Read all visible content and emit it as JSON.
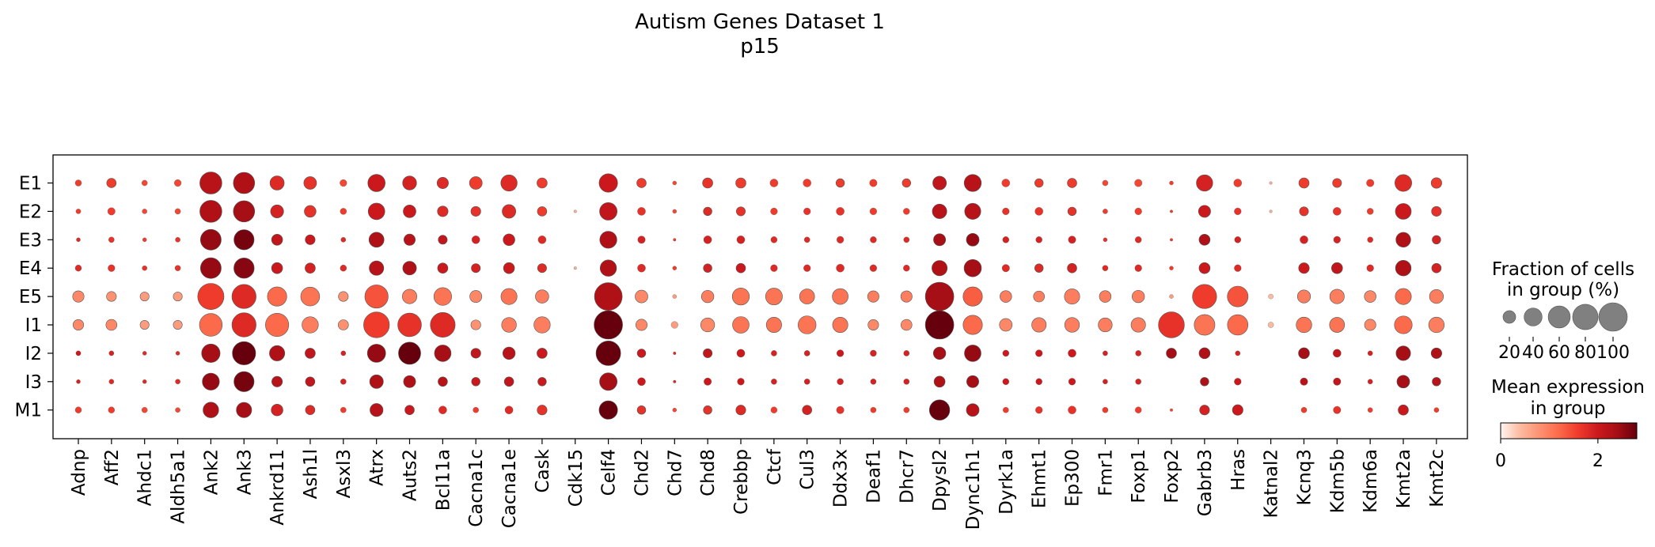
{
  "chart_data": {
    "type": "dotplot",
    "title": "Autism Genes Dataset 1",
    "subtitle": "p15",
    "groups": [
      "E1",
      "E2",
      "E3",
      "E4",
      "E5",
      "I1",
      "I2",
      "I3",
      "M1"
    ],
    "genes": [
      "Adnp",
      "Aff2",
      "Ahdc1",
      "Aldh5a1",
      "Ank2",
      "Ank3",
      "Ankrd11",
      "Ash1l",
      "Asxl3",
      "Atrx",
      "Auts2",
      "Bcl11a",
      "Cacna1c",
      "Cacna1e",
      "Cask",
      "Cdk15",
      "Celf4",
      "Chd2",
      "Chd7",
      "Chd8",
      "Crebbp",
      "Ctcf",
      "Cul3",
      "Ddx3x",
      "Deaf1",
      "Dhcr7",
      "Dpysl2",
      "Dync1h1",
      "Dyrk1a",
      "Ehmt1",
      "Ep300",
      "Fmr1",
      "Foxp1",
      "Foxp2",
      "Gabrb3",
      "Hras",
      "Katnal2",
      "Kcnq3",
      "Kdm5b",
      "Kdm6a",
      "Kmt2a",
      "Kmt2c"
    ],
    "fraction_pct": [
      [
        5,
        11,
        4,
        6,
        60,
        56,
        25,
        20,
        6,
        37,
        24,
        16,
        20,
        33,
        13,
        0,
        42,
        11,
        2,
        13,
        13,
        8,
        8,
        9,
        7,
        9,
        23,
        36,
        8,
        9,
        11,
        4,
        7,
        2,
        33,
        8,
        1,
        13,
        10,
        7,
        35,
        14
      ],
      [
        3,
        7,
        3,
        4,
        60,
        56,
        21,
        17,
        5,
        34,
        20,
        14,
        12,
        23,
        11,
        1,
        38,
        8,
        2,
        9,
        10,
        6,
        6,
        8,
        6,
        5,
        26,
        32,
        6,
        8,
        9,
        3,
        6,
        1,
        18,
        6,
        1,
        10,
        8,
        5,
        31,
        12
      ],
      [
        2,
        4,
        2,
        3,
        53,
        50,
        15,
        12,
        3,
        28,
        16,
        10,
        8,
        17,
        8,
        0,
        36,
        7,
        1,
        8,
        8,
        5,
        4,
        6,
        5,
        4,
        18,
        20,
        5,
        5,
        7,
        2,
        5,
        1,
        15,
        5,
        0,
        8,
        6,
        4,
        27,
        9
      ],
      [
        5,
        6,
        3,
        4,
        53,
        51,
        15,
        13,
        5,
        26,
        23,
        13,
        10,
        15,
        10,
        1,
        33,
        8,
        2,
        9,
        11,
        6,
        6,
        8,
        6,
        5,
        29,
        37,
        7,
        9,
        11,
        4,
        6,
        2,
        15,
        6,
        0,
        14,
        15,
        6,
        30,
        11
      ],
      [
        16,
        12,
        10,
        10,
        85,
        72,
        46,
        44,
        12,
        67,
        26,
        39,
        18,
        32,
        22,
        0,
        95,
        20,
        2,
        19,
        36,
        35,
        28,
        31,
        16,
        16,
        100,
        46,
        17,
        15,
        29,
        17,
        19,
        2,
        72,
        53,
        3,
        21,
        26,
        17,
        32,
        24
      ],
      [
        14,
        15,
        10,
        10,
        64,
        72,
        67,
        33,
        13,
        82,
        69,
        76,
        12,
        27,
        33,
        0,
        100,
        16,
        6,
        24,
        34,
        29,
        40,
        29,
        14,
        15,
        100,
        46,
        20,
        26,
        27,
        24,
        26,
        83,
        53,
        52,
        4,
        30,
        28,
        16,
        39,
        30
      ],
      [
        3,
        3,
        2,
        2,
        42,
        67,
        29,
        13,
        3,
        41,
        61,
        34,
        12,
        19,
        13,
        0,
        75,
        9,
        1,
        10,
        8,
        4,
        4,
        6,
        5,
        4,
        19,
        34,
        5,
        6,
        8,
        3,
        4,
        13,
        15,
        3,
        0,
        15,
        8,
        3,
        26,
        14
      ],
      [
        2,
        3,
        2,
        3,
        36,
        50,
        14,
        11,
        4,
        23,
        18,
        11,
        9,
        11,
        9,
        0,
        38,
        8,
        1,
        7,
        6,
        4,
        4,
        5,
        4,
        4,
        15,
        18,
        5,
        5,
        6,
        3,
        4,
        0,
        9,
        6,
        0,
        7,
        7,
        3,
        20,
        9
      ],
      [
        5,
        5,
        4,
        3,
        30,
        29,
        17,
        11,
        4,
        21,
        11,
        8,
        4,
        8,
        12,
        0,
        42,
        9,
        2,
        9,
        12,
        5,
        11,
        7,
        4,
        4,
        51,
        20,
        4,
        6,
        8,
        4,
        5,
        1,
        12,
        14,
        0,
        4,
        7,
        3,
        13,
        3
      ]
    ],
    "mean_expression": [
      [
        1.6,
        1.6,
        1.5,
        1.5,
        2.2,
        2.3,
        1.8,
        1.7,
        1.5,
        2.0,
        1.9,
        1.8,
        1.6,
        1.8,
        1.6,
        0.5,
        2.0,
        1.6,
        1.5,
        1.7,
        1.6,
        1.6,
        1.6,
        1.6,
        1.6,
        1.6,
        2.1,
        2.2,
        1.6,
        1.6,
        1.6,
        1.5,
        1.5,
        1.6,
        1.9,
        1.6,
        0.5,
        1.6,
        1.6,
        1.6,
        1.8,
        1.6
      ],
      [
        1.6,
        1.6,
        1.5,
        1.5,
        2.3,
        2.4,
        1.9,
        1.7,
        1.6,
        2.0,
        2.0,
        1.8,
        1.7,
        1.8,
        1.6,
        0.5,
        2.1,
        1.7,
        1.5,
        1.8,
        1.7,
        1.6,
        1.7,
        1.7,
        1.6,
        1.6,
        2.2,
        2.2,
        1.7,
        1.7,
        1.7,
        1.6,
        1.6,
        1.6,
        2.0,
        1.7,
        0.5,
        1.7,
        1.7,
        1.6,
        2.0,
        1.7
      ],
      [
        1.8,
        1.7,
        1.6,
        1.7,
        2.5,
        2.7,
        2.1,
        2.0,
        1.8,
        2.3,
        2.2,
        2.1,
        1.9,
        2.0,
        1.8,
        0.5,
        2.3,
        1.9,
        1.6,
        1.9,
        1.9,
        1.8,
        1.8,
        1.8,
        1.8,
        1.8,
        2.4,
        2.5,
        1.9,
        1.9,
        1.9,
        1.7,
        1.8,
        1.6,
        2.3,
        1.9,
        0.5,
        1.9,
        1.9,
        1.8,
        2.3,
        1.9
      ],
      [
        1.8,
        1.7,
        1.7,
        1.7,
        2.5,
        2.6,
        2.0,
        1.9,
        1.8,
        2.2,
        2.3,
        2.0,
        1.9,
        2.0,
        1.8,
        0.5,
        2.3,
        1.8,
        1.6,
        1.9,
        2.0,
        1.8,
        1.8,
        1.8,
        1.8,
        1.8,
        2.3,
        2.4,
        1.8,
        1.8,
        1.9,
        1.8,
        1.8,
        1.6,
        2.0,
        1.8,
        0.5,
        2.0,
        2.1,
        1.8,
        2.3,
        1.9
      ],
      [
        0.9,
        0.8,
        0.7,
        0.7,
        1.6,
        1.8,
        1.2,
        1.1,
        0.8,
        1.4,
        1.0,
        1.1,
        0.9,
        1.1,
        1.0,
        0.4,
        2.3,
        0.9,
        0.7,
        1.0,
        1.1,
        1.1,
        1.1,
        1.1,
        1.0,
        1.0,
        2.4,
        1.3,
        1.0,
        1.0,
        1.0,
        1.0,
        1.0,
        0.7,
        1.6,
        1.4,
        0.4,
        1.0,
        1.0,
        0.9,
        1.2,
        1.0
      ],
      [
        0.9,
        0.9,
        0.7,
        0.7,
        1.2,
        1.8,
        1.2,
        1.0,
        0.8,
        1.6,
        1.7,
        1.8,
        0.8,
        1.0,
        1.0,
        0.4,
        2.9,
        0.9,
        0.7,
        0.9,
        1.1,
        1.1,
        1.1,
        1.1,
        0.9,
        0.9,
        2.8,
        1.2,
        0.9,
        1.0,
        1.0,
        1.0,
        1.0,
        1.7,
        1.1,
        1.2,
        0.4,
        1.1,
        1.1,
        0.9,
        1.2,
        1.0
      ],
      [
        2.0,
        1.9,
        1.8,
        1.8,
        2.4,
        2.9,
        2.3,
        2.1,
        1.9,
        2.5,
        2.8,
        2.4,
        2.1,
        2.2,
        2.0,
        0.5,
        2.8,
        2.0,
        1.8,
        2.1,
        2.0,
        1.9,
        1.9,
        2.0,
        1.9,
        1.9,
        2.4,
        2.5,
        2.0,
        2.0,
        2.0,
        1.9,
        1.9,
        2.4,
        2.3,
        1.9,
        0.5,
        2.4,
        2.1,
        1.9,
        2.4,
        2.3
      ],
      [
        1.9,
        1.8,
        1.8,
        1.8,
        2.5,
        2.7,
        2.2,
        2.1,
        1.9,
        2.3,
        2.3,
        2.2,
        2.0,
        2.1,
        2.0,
        0.5,
        2.4,
        2.0,
        1.8,
        2.0,
        2.0,
        1.9,
        1.9,
        1.9,
        1.9,
        1.9,
        2.3,
        2.4,
        2.0,
        2.0,
        2.0,
        1.9,
        1.9,
        1.8,
        2.3,
        2.0,
        0.5,
        2.2,
        2.1,
        1.9,
        2.4,
        2.2
      ],
      [
        1.6,
        1.6,
        1.5,
        1.5,
        2.3,
        2.4,
        1.9,
        1.8,
        1.6,
        2.2,
        2.0,
        1.8,
        1.6,
        1.8,
        1.7,
        0.5,
        2.8,
        1.7,
        1.5,
        1.7,
        1.8,
        1.6,
        1.9,
        1.7,
        1.6,
        1.6,
        2.8,
        2.2,
        1.6,
        1.7,
        1.7,
        1.6,
        1.6,
        1.5,
        1.9,
        2.0,
        0.5,
        1.6,
        1.7,
        1.6,
        2.0,
        1.6
      ]
    ],
    "size_legend": {
      "title_line1": "Fraction of cells",
      "title_line2": "in group (%)",
      "values": [
        20,
        40,
        60,
        80,
        100
      ],
      "labels": [
        "20",
        "40",
        "60",
        "80",
        "100"
      ]
    },
    "color_legend": {
      "title_line1": "Mean expression",
      "title_line2": "in group",
      "range": [
        0,
        2.8
      ],
      "ticks": [
        0,
        2
      ],
      "labels": [
        "0",
        "2"
      ],
      "colormap": "Reds",
      "colors": [
        "#fff5f0",
        "#fcbba1",
        "#fc9272",
        "#fb6a4a",
        "#ef3b2c",
        "#cb181d",
        "#a50f15",
        "#67000d"
      ]
    },
    "grid": false
  }
}
